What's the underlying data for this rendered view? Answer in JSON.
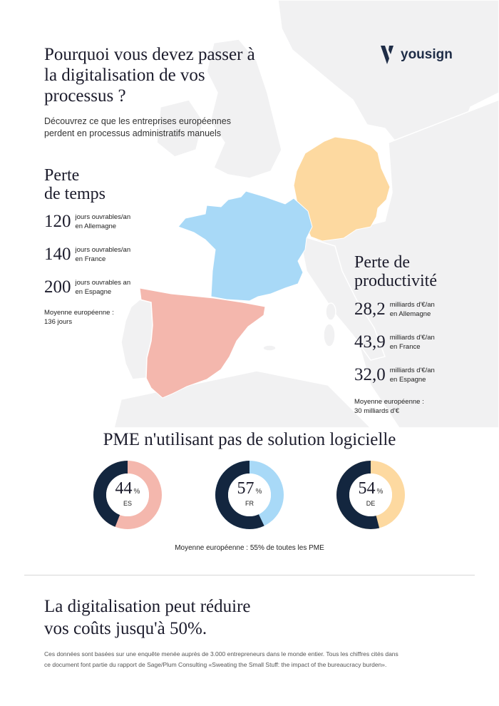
{
  "title": "Pourquoi vous devez passer à la digitalisation de vos processus ?",
  "subtitle": "Découvrez ce que les entreprises européennes perdent en processus administratifs manuels",
  "brand": {
    "name": "yousign",
    "logo_icon": "yousign-logo-icon",
    "color": "#1f2d47"
  },
  "time_loss": {
    "heading_line1": "Perte",
    "heading_line2": "de temps",
    "items": [
      {
        "value": "120",
        "line1": "jours ouvrables/an",
        "line2": "en Allemagne"
      },
      {
        "value": "140",
        "line1": "jours ouvrables/an",
        "line2": "en France"
      },
      {
        "value": "200",
        "line1": "jours ouvrables an",
        "line2": "en Espagne"
      }
    ],
    "average_line1": "Moyenne européenne :",
    "average_line2": "136 jours"
  },
  "productivity_loss": {
    "heading_line1": "Perte de",
    "heading_line2": "productivité",
    "items": [
      {
        "value": "28,2",
        "line1": "milliards d'€/an",
        "line2": "en Allemagne"
      },
      {
        "value": "43,9",
        "line1": "milliards d'€/an",
        "line2": "en France"
      },
      {
        "value": "32,0",
        "line1": "milliards d'€/an",
        "line2": "en Espagne"
      }
    ],
    "average_line1": "Moyenne européenne :",
    "average_line2": "30 milliards d'€"
  },
  "map": {
    "colors": {
      "france": "#a8d9f7",
      "spain": "#f4b7ad",
      "germany": "#fdd9a0",
      "land": "#f1f1f2",
      "borders": "#ffffff"
    }
  },
  "pme": {
    "title": "PME n'utilisant pas de solution logicielle",
    "percent_sign": "%",
    "average": "Moyenne européenne : 55% de toutes les PME",
    "dark_color": "#13263f",
    "items": [
      {
        "value": "44",
        "fraction": 0.44,
        "country": "ES",
        "color": "#f4b7ad"
      },
      {
        "value": "57",
        "fraction": 0.57,
        "country": "FR",
        "color": "#a8d9f7"
      },
      {
        "value": "54",
        "fraction": 0.54,
        "country": "DE",
        "color": "#fdd9a0"
      }
    ]
  },
  "closing_line1": "La digitalisation peut réduire",
  "closing_line2": "vos coûts jusqu'à 50%.",
  "footnote_line1": "Ces données sont basées sur une enquête menée auprès de 3.000 entrepreneurs dans le monde entier. Tous les chiffres cités dans",
  "footnote_line2": "ce document font partie du rapport de Sage/Plum Consulting «Sweating the Small Stuff: the impact of the bureaucracy burden»."
}
